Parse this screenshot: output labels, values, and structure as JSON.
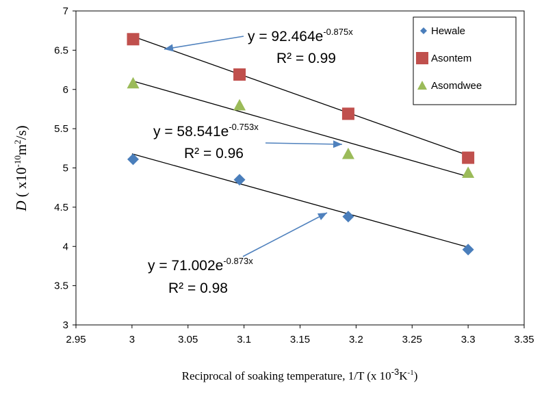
{
  "chart_data": {
    "type": "scatter",
    "xlabel": {
      "main": "Reciprocal of soaking temperature, 1/T (x 10",
      "sup1": "-3",
      "mid": "K",
      "sup2": "-1",
      "end": ")"
    },
    "ylabel": {
      "symbol": "D",
      "open": " ( x10",
      "sup1": "-10",
      "unit": "m",
      "sup2": "2",
      "close": "/s)"
    },
    "xlim": [
      2.95,
      3.35
    ],
    "ylim": [
      3,
      7
    ],
    "x_ticks": [
      "2.95",
      "3",
      "3.05",
      "3.1",
      "3.15",
      "3.2",
      "3.25",
      "3.3",
      "3.35"
    ],
    "y_ticks": [
      "3",
      "3.5",
      "4",
      "4.5",
      "5",
      "5.5",
      "6",
      "6.5",
      "7"
    ],
    "legend_position": "top-right",
    "series": [
      {
        "name": "Hewale",
        "marker": "diamond",
        "color": "#4a7ebb",
        "points": [
          [
            3.001,
            5.11
          ],
          [
            3.096,
            4.85
          ],
          [
            3.193,
            4.38
          ],
          [
            3.3,
            3.96
          ]
        ],
        "trend": {
          "x": [
            3.0,
            3.3
          ],
          "y": [
            5.18,
            3.99
          ]
        },
        "equation": {
          "base": "y = 71.002e",
          "exp": "-0.873x"
        },
        "r2": "R² = 0.98"
      },
      {
        "name": "Asontem",
        "marker": "square",
        "color": "#c0504d",
        "points": [
          [
            3.001,
            6.64
          ],
          [
            3.096,
            6.19
          ],
          [
            3.193,
            5.69
          ],
          [
            3.3,
            5.13
          ]
        ],
        "trend": {
          "x": [
            3.0,
            3.3
          ],
          "y": [
            6.68,
            5.16
          ]
        },
        "equation": {
          "base": "y = 92.464e",
          "exp": "-0.875x"
        },
        "r2": "R² = 0.99"
      },
      {
        "name": "Asomdwee",
        "marker": "triangle",
        "color": "#9bbb59",
        "points": [
          [
            3.001,
            6.08
          ],
          [
            3.096,
            5.8
          ],
          [
            3.193,
            5.18
          ],
          [
            3.3,
            4.94
          ]
        ],
        "trend": {
          "x": [
            3.0,
            3.3
          ],
          "y": [
            6.11,
            4.89
          ]
        },
        "equation": {
          "base": "y = 58.541e",
          "exp": "-0.753x"
        },
        "r2": "R² = 0.96"
      }
    ]
  },
  "colors": {
    "arrow": "#4f81bd",
    "trendline": "#000000",
    "axis": "#000000"
  }
}
